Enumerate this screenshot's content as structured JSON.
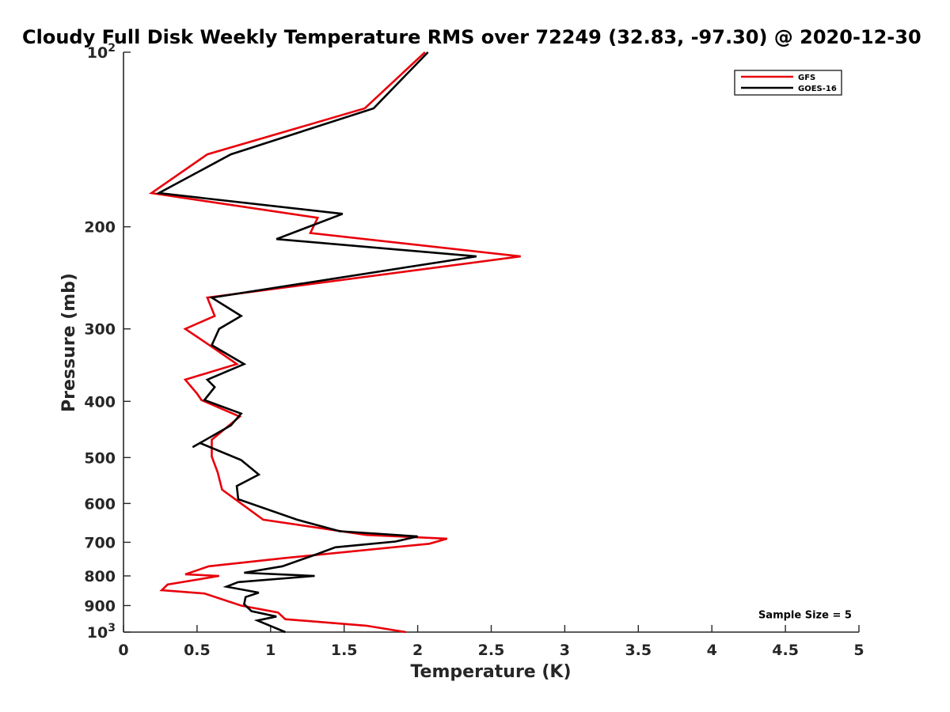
{
  "chart_data": {
    "type": "line",
    "title": "Cloudy Full Disk Weekly Temperature RMS over 72249 (32.83, -97.30) @ 2020-12-30",
    "xlabel": "Temperature (K)",
    "ylabel": "Pressure (mb)",
    "xlim": [
      0,
      5
    ],
    "ylim": [
      1000,
      100
    ],
    "y_scale": "log",
    "y_reversed": true,
    "grid": false,
    "legend_position": "top-right",
    "x_ticks": [
      "0",
      "0.5",
      "1",
      "1.5",
      "2",
      "2.5",
      "3",
      "3.5",
      "4",
      "4.5",
      "5"
    ],
    "y_ticks": [
      {
        "value": 100,
        "base": "10",
        "exp": "2"
      },
      {
        "value": 200,
        "base": "200",
        "exp": ""
      },
      {
        "value": 300,
        "base": "300",
        "exp": ""
      },
      {
        "value": 400,
        "base": "400",
        "exp": ""
      },
      {
        "value": 500,
        "base": "500",
        "exp": ""
      },
      {
        "value": 600,
        "base": "600",
        "exp": ""
      },
      {
        "value": 700,
        "base": "700",
        "exp": ""
      },
      {
        "value": 800,
        "base": "800",
        "exp": ""
      },
      {
        "value": 900,
        "base": "900",
        "exp": ""
      },
      {
        "value": 1000,
        "base": "10",
        "exp": "3"
      }
    ],
    "series": [
      {
        "name": "GFS",
        "color": "#e8000b",
        "points": [
          [
            2.05,
            100
          ],
          [
            1.64,
            125
          ],
          [
            0.57,
            150
          ],
          [
            0.19,
            175
          ],
          [
            1.32,
            193
          ],
          [
            1.27,
            205
          ],
          [
            2.7,
            225
          ],
          [
            0.57,
            265
          ],
          [
            0.62,
            285
          ],
          [
            0.42,
            300
          ],
          [
            0.6,
            322
          ],
          [
            0.77,
            345
          ],
          [
            0.42,
            367
          ],
          [
            0.5,
            388
          ],
          [
            0.53,
            398
          ],
          [
            0.79,
            425
          ],
          [
            0.6,
            466
          ],
          [
            0.6,
            498
          ],
          [
            0.64,
            530
          ],
          [
            0.67,
            568
          ],
          [
            0.95,
            640
          ],
          [
            1.65,
            680
          ],
          [
            2.2,
            690
          ],
          [
            2.08,
            704
          ],
          [
            1.1,
            745
          ],
          [
            0.58,
            770
          ],
          [
            0.42,
            795
          ],
          [
            0.65,
            800
          ],
          [
            0.3,
            828
          ],
          [
            0.26,
            847
          ],
          [
            0.55,
            858
          ],
          [
            0.8,
            900
          ],
          [
            1.05,
            925
          ],
          [
            1.1,
            950
          ],
          [
            1.65,
            975
          ],
          [
            1.92,
            1000
          ]
        ]
      },
      {
        "name": "GOES-16",
        "color": "#000000",
        "points": [
          [
            2.07,
            100
          ],
          [
            1.7,
            125
          ],
          [
            0.73,
            150
          ],
          [
            0.24,
            175
          ],
          [
            1.49,
            190
          ],
          [
            1.04,
            210
          ],
          [
            2.4,
            225
          ],
          [
            0.6,
            265
          ],
          [
            0.8,
            285
          ],
          [
            0.65,
            300
          ],
          [
            0.6,
            320
          ],
          [
            0.82,
            345
          ],
          [
            0.57,
            367
          ],
          [
            0.62,
            378
          ],
          [
            0.55,
            398
          ],
          [
            0.8,
            420
          ],
          [
            0.73,
            440
          ],
          [
            0.47,
            480
          ],
          [
            0.52,
            472
          ],
          [
            0.8,
            505
          ],
          [
            0.92,
            535
          ],
          [
            0.77,
            560
          ],
          [
            0.78,
            590
          ],
          [
            1.18,
            640
          ],
          [
            1.47,
            670
          ],
          [
            2.0,
            684
          ],
          [
            1.85,
            698
          ],
          [
            1.44,
            714
          ],
          [
            1.32,
            733
          ],
          [
            1.08,
            770
          ],
          [
            0.82,
            790
          ],
          [
            1.3,
            800
          ],
          [
            0.78,
            820
          ],
          [
            0.7,
            835
          ],
          [
            0.92,
            855
          ],
          [
            0.83,
            870
          ],
          [
            0.82,
            895
          ],
          [
            0.87,
            920
          ],
          [
            1.04,
            940
          ],
          [
            0.91,
            955
          ],
          [
            1.1,
            1000
          ]
        ]
      }
    ],
    "annotations": [
      {
        "text": "Sample Size = 5",
        "x": 4.3,
        "y": 940
      }
    ]
  }
}
